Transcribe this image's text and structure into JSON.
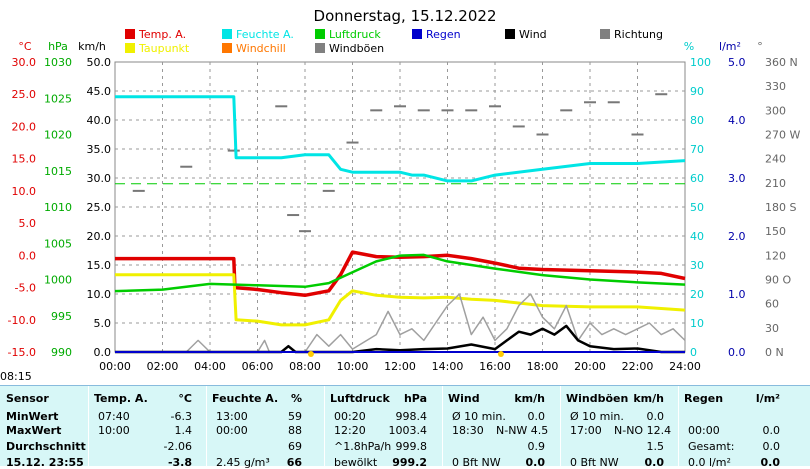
{
  "chart_data": {
    "type": "line",
    "title": "Donnerstag, 15.12.2022",
    "x_ticks": [
      "00:00",
      "02:00",
      "04:00",
      "06:00",
      "08:00",
      "10:00",
      "12:00",
      "14:00",
      "16:00",
      "18:00",
      "20:00",
      "22:00",
      "24:00"
    ],
    "axes": {
      "temp": {
        "label": "°C",
        "ticks": [
          "30.0",
          "25.0",
          "20.0",
          "15.0",
          "10.0",
          "5.0",
          "0.0",
          "-5.0",
          "-10.0",
          "-15.0"
        ],
        "range": [
          -15,
          30
        ]
      },
      "pressure": {
        "label": "hPa",
        "ticks": [
          "1030",
          "1025",
          "1020",
          "1015",
          "1010",
          "1005",
          "1000",
          "995",
          "990"
        ],
        "range": [
          990,
          1030
        ]
      },
      "wind": {
        "label": "km/h",
        "ticks": [
          "50.0",
          "45.0",
          "40.0",
          "35.0",
          "30.0",
          "25.0",
          "20.0",
          "15.0",
          "10.0",
          "5.0",
          "0.0"
        ],
        "range": [
          0,
          50
        ]
      },
      "humidity": {
        "label": "%",
        "ticks": [
          "100",
          "90",
          "80",
          "70",
          "60",
          "50",
          "40",
          "30",
          "20",
          "10",
          "0"
        ],
        "range": [
          0,
          100
        ]
      },
      "rain": {
        "label": "l/m²",
        "ticks": [
          "5.0",
          "4.0",
          "3.0",
          "2.0",
          "1.0",
          "0.0"
        ],
        "range": [
          0,
          5
        ]
      },
      "direction": {
        "label": "°",
        "ticks": [
          "360 N",
          "330",
          "300",
          "270 W",
          "240",
          "210",
          "180 S",
          "150",
          "120",
          "90 O",
          "60",
          "30",
          "0 N"
        ],
        "range": [
          0,
          360
        ]
      }
    },
    "legend": [
      {
        "name": "Temp. A.",
        "color": "#e00000"
      },
      {
        "name": "Feuchte A.",
        "color": "#00e5e5"
      },
      {
        "name": "Luftdruck",
        "color": "#00cc00"
      },
      {
        "name": "Regen",
        "color": "#0000cc"
      },
      {
        "name": "Wind",
        "color": "#000000"
      },
      {
        "name": "Richtung",
        "color": "#808080"
      },
      {
        "name": "Taupunkt",
        "color": "#f0f000"
      },
      {
        "name": "Windchill",
        "color": "#ff7700"
      },
      {
        "name": "Windböen",
        "color": "#808080"
      }
    ],
    "series": [
      {
        "name": "Temp. A.",
        "axis": "temp",
        "color": "#e00000",
        "points": [
          [
            0,
            -0.5
          ],
          [
            5,
            -0.5
          ],
          [
            5.05,
            -5
          ],
          [
            6,
            -5.3
          ],
          [
            7,
            -5.8
          ],
          [
            8,
            -6.2
          ],
          [
            9,
            -5.5
          ],
          [
            9.5,
            -3
          ],
          [
            10,
            0.5
          ],
          [
            11,
            -0.2
          ],
          [
            12,
            -0.3
          ],
          [
            13,
            -0.2
          ],
          [
            14,
            0
          ],
          [
            15,
            -0.5
          ],
          [
            16,
            -1.2
          ],
          [
            17,
            -2
          ],
          [
            18,
            -2.2
          ],
          [
            20,
            -2.4
          ],
          [
            22,
            -2.6
          ],
          [
            23,
            -2.8
          ],
          [
            24,
            -3.6
          ]
        ]
      },
      {
        "name": "Taupunkt",
        "axis": "temp",
        "color": "#f0f000",
        "points": [
          [
            0,
            -3
          ],
          [
            5,
            -3
          ],
          [
            5.1,
            -10
          ],
          [
            6,
            -10.2
          ],
          [
            7,
            -10.8
          ],
          [
            8,
            -10.8
          ],
          [
            9,
            -10
          ],
          [
            9.5,
            -7
          ],
          [
            10,
            -5.5
          ],
          [
            11,
            -6.2
          ],
          [
            12,
            -6.5
          ],
          [
            13,
            -6.6
          ],
          [
            14,
            -6.5
          ],
          [
            15,
            -6.8
          ],
          [
            16,
            -7
          ],
          [
            18,
            -7.8
          ],
          [
            20,
            -8
          ],
          [
            22,
            -8
          ],
          [
            24,
            -8.5
          ]
        ]
      },
      {
        "name": "Feuchte A.",
        "axis": "humidity",
        "color": "#00e5e5",
        "points": [
          [
            0,
            88
          ],
          [
            5,
            88
          ],
          [
            5.1,
            67
          ],
          [
            6,
            67
          ],
          [
            7,
            67
          ],
          [
            8,
            68
          ],
          [
            9,
            68
          ],
          [
            9.5,
            63
          ],
          [
            10,
            62
          ],
          [
            11,
            62
          ],
          [
            12,
            62
          ],
          [
            12.5,
            61
          ],
          [
            13,
            61
          ],
          [
            14,
            59
          ],
          [
            15,
            59
          ],
          [
            16,
            61
          ],
          [
            18,
            63
          ],
          [
            20,
            65
          ],
          [
            22,
            65
          ],
          [
            24,
            66
          ]
        ]
      },
      {
        "name": "Luftdruck",
        "axis": "pressure",
        "color": "#00cc00",
        "points": [
          [
            0,
            998.4
          ],
          [
            2,
            998.6
          ],
          [
            4,
            999.4
          ],
          [
            6,
            999.2
          ],
          [
            8,
            999.0
          ],
          [
            9,
            999.5
          ],
          [
            10,
            1001
          ],
          [
            11,
            1002.5
          ],
          [
            12,
            1003.3
          ],
          [
            13,
            1003.4
          ],
          [
            14,
            1002.5
          ],
          [
            15,
            1002
          ],
          [
            16,
            1001.5
          ],
          [
            18,
            1000.6
          ],
          [
            20,
            1000
          ],
          [
            22,
            999.6
          ],
          [
            24,
            999.3
          ]
        ]
      },
      {
        "name": "Windböen",
        "axis": "wind",
        "color": "#a0a0a0",
        "points": [
          [
            0,
            0
          ],
          [
            1,
            0
          ],
          [
            3,
            0
          ],
          [
            3.5,
            2
          ],
          [
            4,
            0
          ],
          [
            6,
            0
          ],
          [
            6.3,
            2
          ],
          [
            6.5,
            0
          ],
          [
            8,
            0
          ],
          [
            8.5,
            3
          ],
          [
            9,
            1
          ],
          [
            9.5,
            3
          ],
          [
            10,
            0.5
          ],
          [
            11,
            3
          ],
          [
            11.5,
            7
          ],
          [
            12,
            3
          ],
          [
            12.5,
            4
          ],
          [
            13,
            2
          ],
          [
            13.5,
            5
          ],
          [
            14,
            8
          ],
          [
            14.5,
            10
          ],
          [
            15,
            3
          ],
          [
            15.5,
            6
          ],
          [
            16,
            2
          ],
          [
            16.5,
            4
          ],
          [
            17,
            8
          ],
          [
            17.5,
            10
          ],
          [
            18,
            6
          ],
          [
            18.5,
            4
          ],
          [
            19,
            8
          ],
          [
            19.5,
            2
          ],
          [
            20,
            5
          ],
          [
            20.5,
            3
          ],
          [
            21,
            4
          ],
          [
            21.5,
            3
          ],
          [
            22,
            4
          ],
          [
            22.5,
            5
          ],
          [
            23,
            3
          ],
          [
            23.5,
            4
          ],
          [
            24,
            2
          ]
        ]
      },
      {
        "name": "Wind",
        "axis": "wind",
        "color": "#000000",
        "points": [
          [
            0,
            0
          ],
          [
            7,
            0
          ],
          [
            7.3,
            1
          ],
          [
            7.6,
            0
          ],
          [
            10,
            0
          ],
          [
            11,
            0.5
          ],
          [
            12,
            0.3
          ],
          [
            13,
            0.5
          ],
          [
            14,
            0.6
          ],
          [
            15,
            1.3
          ],
          [
            16,
            0.5
          ],
          [
            16.5,
            2
          ],
          [
            17,
            3.5
          ],
          [
            17.5,
            3
          ],
          [
            18,
            4
          ],
          [
            18.5,
            3
          ],
          [
            19,
            4.5
          ],
          [
            19.5,
            2
          ],
          [
            20,
            1
          ],
          [
            21,
            0.5
          ],
          [
            22,
            0.6
          ],
          [
            23,
            0
          ],
          [
            24,
            0
          ]
        ]
      },
      {
        "name": "Regen",
        "axis": "rain",
        "color": "#0000cc",
        "points": [
          [
            0,
            0
          ],
          [
            24,
            0
          ]
        ]
      }
    ],
    "reference_line": {
      "name": "dashed",
      "axis": "humidity",
      "value": 58,
      "color": "#00cc00"
    },
    "direction_points": [
      [
        1,
        200
      ],
      [
        3,
        230
      ],
      [
        5,
        250
      ],
      [
        7,
        305
      ],
      [
        7.5,
        170
      ],
      [
        8,
        150
      ],
      [
        9,
        200
      ],
      [
        10,
        260
      ],
      [
        11,
        300
      ],
      [
        12,
        305
      ],
      [
        13,
        300
      ],
      [
        14,
        300
      ],
      [
        15,
        300
      ],
      [
        16,
        305
      ],
      [
        17,
        280
      ],
      [
        18,
        270
      ],
      [
        19,
        300
      ],
      [
        20,
        310
      ],
      [
        21,
        310
      ],
      [
        22,
        270
      ],
      [
        23,
        320
      ]
    ],
    "sun_marks": [
      {
        "time": "08:15",
        "x": 8.25
      },
      {
        "time": "16:15",
        "x": 16.25
      }
    ]
  },
  "stats": {
    "col_sensor": {
      "label": "Sensor",
      "rows": [
        "MinWert",
        "MaxWert",
        "Durchschnitt",
        "15.12. 23:55"
      ]
    },
    "col_temp": {
      "label": "Temp. A.",
      "unit": "°C",
      "times": [
        "07:40",
        "10:00",
        "",
        ""
      ],
      "values": [
        "-6.3",
        "1.4",
        "-2.06",
        "-3.8"
      ]
    },
    "col_hum": {
      "label": "Feuchte A.",
      "unit": "%",
      "times": [
        "13:00",
        "00:00",
        "",
        "2.45 g/m³"
      ],
      "values": [
        "59",
        "88",
        "69",
        "66"
      ]
    },
    "col_press": {
      "label": "Luftdruck",
      "unit": "hPa",
      "times": [
        "00:20",
        "12:20",
        "^1.8hPa/h",
        "bewölkt"
      ],
      "values": [
        "998.4",
        "1003.4",
        "999.8",
        "999.2"
      ]
    },
    "col_wind": {
      "label": "Wind",
      "unit": "km/h",
      "times": [
        "Ø 10 min.",
        "18:30",
        "",
        "0 Bft NW"
      ],
      "dirs": [
        "",
        "N-NW 4.5",
        "",
        ""
      ],
      "values": [
        "0.0",
        "",
        "0.9",
        "0.0"
      ]
    },
    "col_gust": {
      "label": "Windböen",
      "unit": "km/h",
      "times": [
        "Ø 10 min.",
        "17:00",
        "",
        "0 Bft NW"
      ],
      "dirs": [
        "",
        "N-NO 12.4",
        "",
        ""
      ],
      "values": [
        "0.0",
        "",
        "1.5",
        "0.0"
      ]
    },
    "col_rain": {
      "label": "Regen",
      "unit": "l/m²",
      "times": [
        "",
        "00:00",
        "Gesamt:",
        "0.0 l/m²"
      ],
      "values": [
        "",
        "0.0",
        "0.0",
        "0.0"
      ]
    }
  },
  "sun_label": "08:15"
}
